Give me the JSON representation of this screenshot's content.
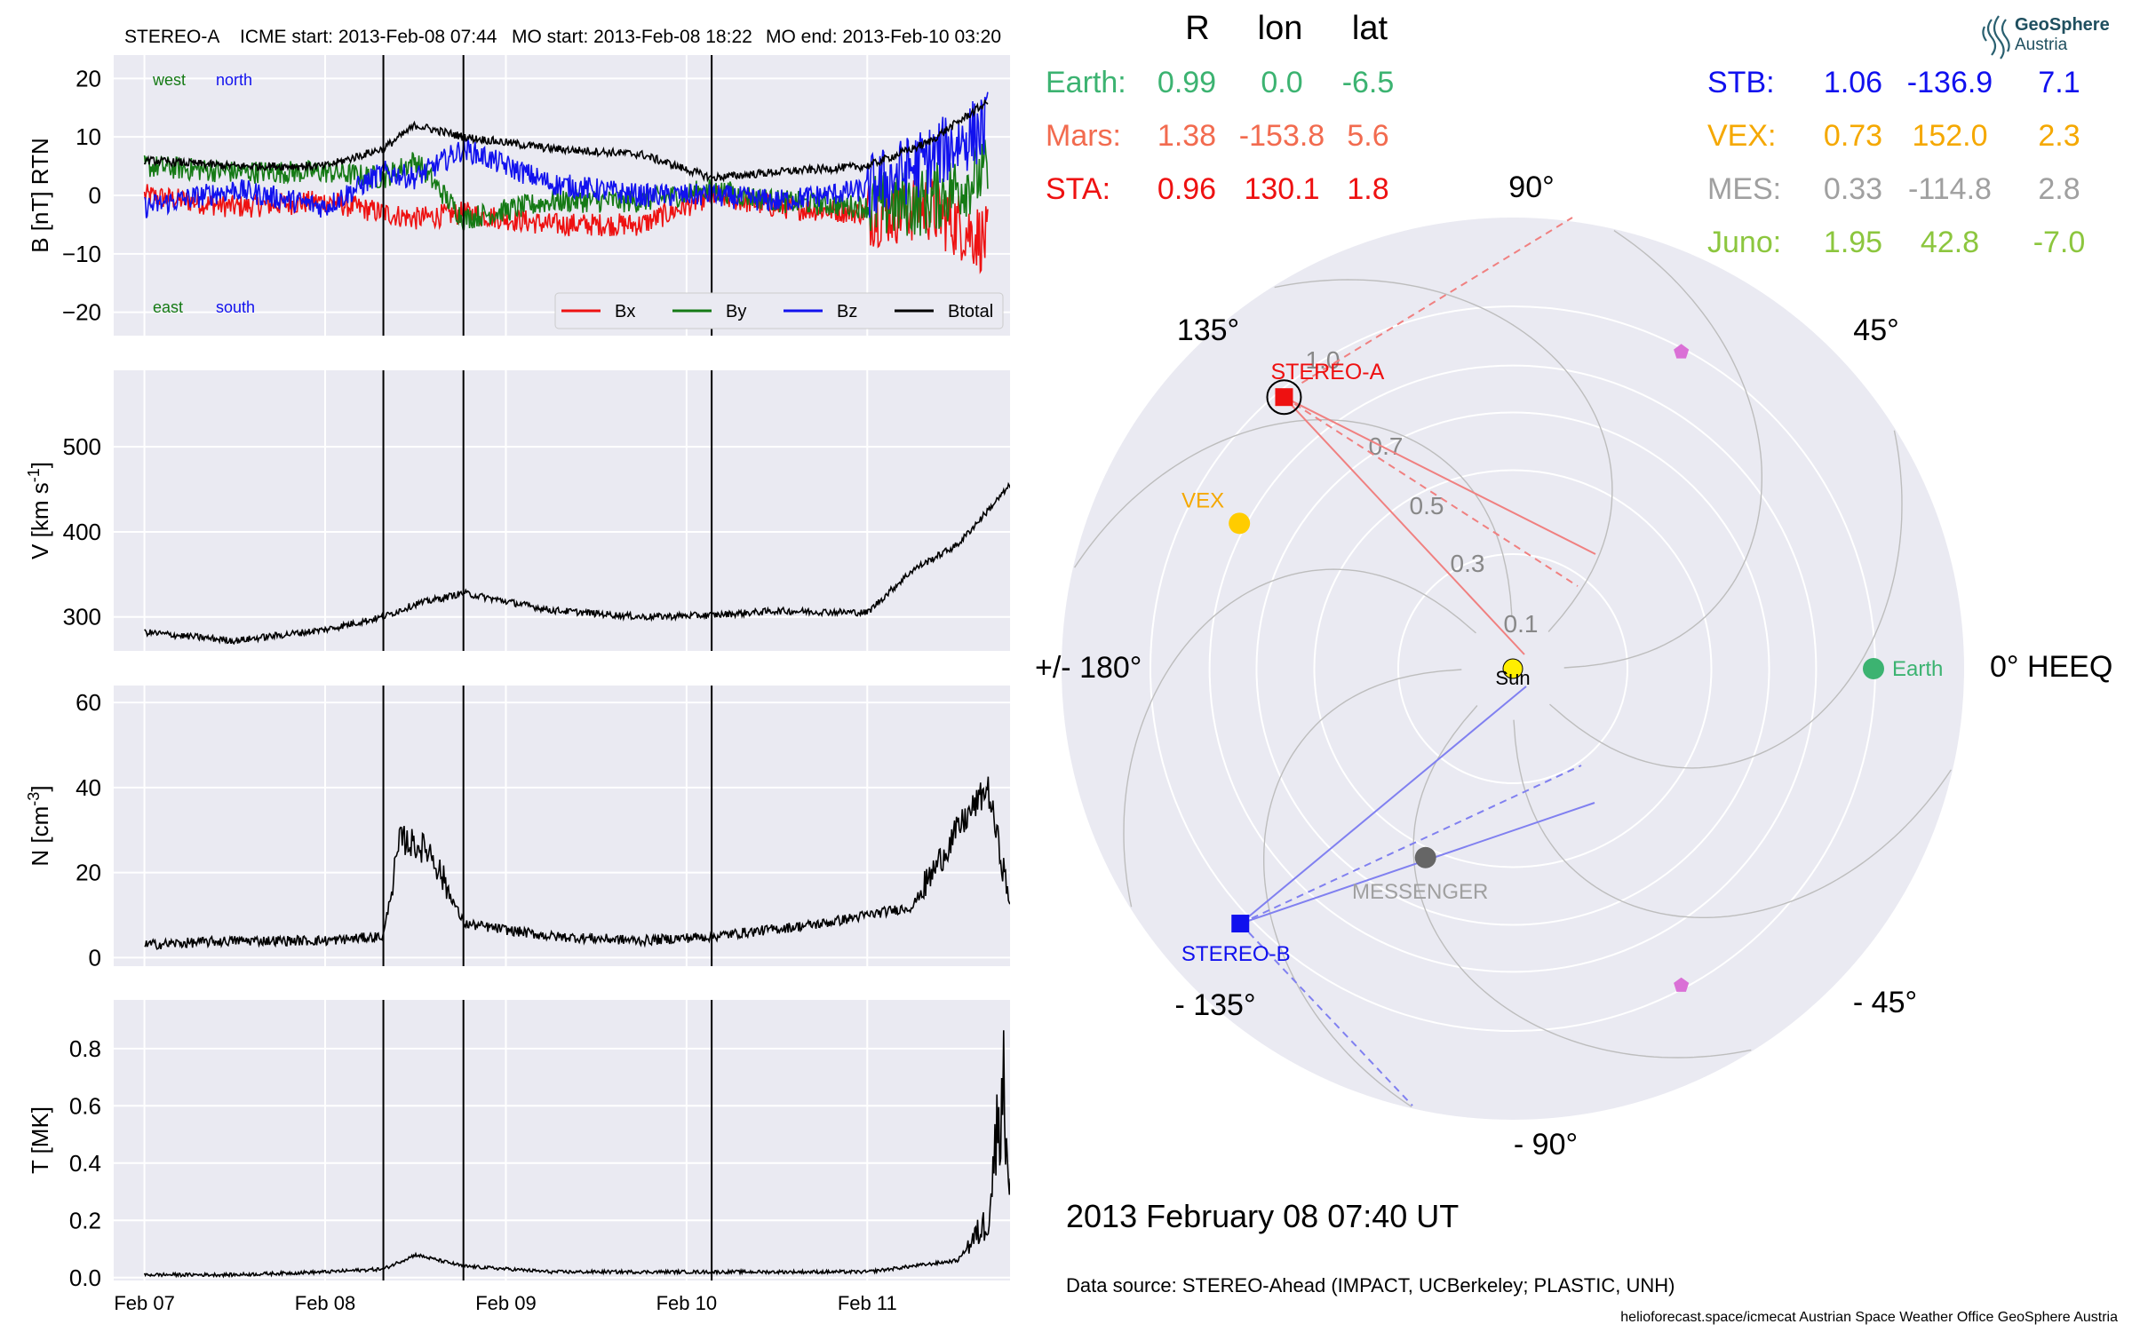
{
  "header": {
    "spacecraft": "STEREO-A",
    "icme_start": "ICME start: 2013-Feb-08 07:44",
    "mo_start": "MO start: 2013-Feb-08 18:22",
    "mo_end": "MO end: 2013-Feb-10 03:20"
  },
  "colors": {
    "bx": "#ee1111",
    "by": "#157a15",
    "bz": "#1111ee",
    "btotal": "#000000",
    "earth": "#3cb371",
    "mars": "#f26b4f",
    "sta": "#ee1111",
    "stb": "#1111ee",
    "vex": "#f5a800",
    "mes": "#a0a0a0",
    "juno": "#8cc63e",
    "panel_bg": "#eaeaf2"
  },
  "positions_table": {
    "headers": [
      "R",
      "lon",
      "lat"
    ],
    "left": [
      {
        "name": "Earth:",
        "R": "0.99",
        "lon": "0.0",
        "lat": "-6.5",
        "color": "#3cb371"
      },
      {
        "name": "Mars:",
        "R": "1.38",
        "lon": "-153.8",
        "lat": "5.6",
        "color": "#f26b4f"
      },
      {
        "name": "STA:",
        "R": "0.96",
        "lon": "130.1",
        "lat": "1.8",
        "color": "#ee1111"
      }
    ],
    "right": [
      {
        "name": "STB:",
        "R": "1.06",
        "lon": "-136.9",
        "lat": "7.1",
        "color": "#1111ee"
      },
      {
        "name": "VEX:",
        "R": "0.73",
        "lon": "152.0",
        "lat": "2.3",
        "color": "#f5a800"
      },
      {
        "name": "MES:",
        "R": "0.33",
        "lon": "-114.8",
        "lat": "2.8",
        "color": "#a0a0a0"
      },
      {
        "name": "Juno:",
        "R": "1.95",
        "lon": "42.8",
        "lat": "-7.0",
        "color": "#8cc63e"
      }
    ]
  },
  "logo": {
    "line1": "GeoSphere",
    "line2": "Austria"
  },
  "footer": {
    "timestamp": "2013 February 08  07:40 UT",
    "data_source": "Data source: STEREO-Ahead (IMPACT, UCBerkeley; PLASTIC, UNH)",
    "credits": "helioforecast.space/icmecat   Austrian Space Weather Office   GeoSphere Austria"
  },
  "chart_data": [
    {
      "type": "line",
      "panel": "magnetic field",
      "ylabel": "B [nT] RTN",
      "ylim": [
        -24,
        24
      ],
      "yticks": [
        "20",
        "10",
        "0",
        "−10",
        "−20"
      ],
      "corner_labels": {
        "top_left": "west",
        "top_right": "north",
        "bottom_left": "east",
        "bottom_right": "south"
      },
      "legend": "lower-right",
      "x": [
        "Feb 07 00:00",
        "Feb 07 12:00",
        "Feb 08 00:00",
        "Feb 08 07:44",
        "Feb 08 12:00",
        "Feb 08 18:22",
        "Feb 09 06:00",
        "Feb 09 18:00",
        "Feb 10 03:20",
        "Feb 10 12:00",
        "Feb 11 00:00",
        "Feb 11 08:00",
        "Feb 11 16:00"
      ],
      "series": [
        {
          "name": "Bx",
          "values": [
            0,
            -2,
            -1,
            -3,
            -4,
            -3,
            -5,
            -5,
            0,
            -2,
            -3,
            -2,
            -8
          ]
        },
        {
          "name": "By",
          "values": [
            5,
            4,
            4,
            3,
            6,
            -4,
            -1,
            -1,
            1,
            -1,
            -2,
            -1,
            4
          ]
        },
        {
          "name": "Bz",
          "values": [
            -2,
            1,
            -2,
            4,
            3,
            8,
            2,
            0,
            0,
            -1,
            1,
            6,
            12
          ]
        },
        {
          "name": "Btotal",
          "values": [
            6,
            5,
            5,
            8,
            12,
            10,
            8,
            7,
            3,
            4,
            5,
            9,
            16
          ]
        }
      ]
    },
    {
      "type": "line",
      "panel": "speed",
      "ylabel": "V [km s$^{-1}$]",
      "ylim": [
        260,
        590
      ],
      "yticks": [
        "500",
        "400",
        "300"
      ],
      "x": [
        "Feb 07 00:00",
        "Feb 07 12:00",
        "Feb 08 00:00",
        "Feb 08 07:44",
        "Feb 08 12:00",
        "Feb 08 18:22",
        "Feb 09 06:00",
        "Feb 09 18:00",
        "Feb 10 03:20",
        "Feb 10 12:00",
        "Feb 11 00:00",
        "Feb 11 06:00",
        "Feb 11 12:00",
        "Feb 11 19:00"
      ],
      "series": [
        {
          "name": "V",
          "values": [
            282,
            272,
            285,
            300,
            315,
            328,
            308,
            300,
            302,
            307,
            305,
            355,
            385,
            455
          ]
        }
      ]
    },
    {
      "type": "line",
      "panel": "density",
      "ylabel": "N [cm$^{-3}$]",
      "ylim": [
        -2,
        64
      ],
      "yticks": [
        "60",
        "40",
        "20",
        "0"
      ],
      "x": [
        "Feb 07 00:00",
        "Feb 07 12:00",
        "Feb 08 00:00",
        "Feb 08 07:44",
        "Feb 08 10:00",
        "Feb 08 14:00",
        "Feb 08 18:22",
        "Feb 09 06:00",
        "Feb 09 18:00",
        "Feb 10 03:20",
        "Feb 10 18:00",
        "Feb 11 06:00",
        "Feb 11 12:00",
        "Feb 11 16:00",
        "Feb 11 19:00"
      ],
      "series": [
        {
          "name": "N",
          "values": [
            3,
            4,
            4,
            5,
            28,
            25,
            8,
            5,
            4,
            5,
            8,
            12,
            30,
            40,
            12
          ]
        }
      ]
    },
    {
      "type": "line",
      "panel": "temperature",
      "ylabel": "T [MK]",
      "ylim": [
        -0.01,
        0.97
      ],
      "yticks": [
        "0.8",
        "0.6",
        "0.4",
        "0.2",
        "0.0"
      ],
      "x": [
        "Feb 07 00:00",
        "Feb 07 12:00",
        "Feb 08 00:00",
        "Feb 08 07:44",
        "Feb 08 12:00",
        "Feb 08 18:22",
        "Feb 09 06:00",
        "Feb 10 03:20",
        "Feb 11 00:00",
        "Feb 11 12:00",
        "Feb 11 16:00",
        "Feb 11 18:00",
        "Feb 11 19:00"
      ],
      "series": [
        {
          "name": "T",
          "values": [
            0.01,
            0.01,
            0.02,
            0.03,
            0.08,
            0.04,
            0.02,
            0.02,
            0.02,
            0.06,
            0.2,
            0.7,
            0.3
          ]
        }
      ]
    },
    {
      "type": "polar",
      "panel": "heliospheric positions",
      "angle_labels": [
        "90°",
        "45°",
        "0° HEEQ",
        "- 45°",
        "- 90°",
        "- 135°",
        "+/- 180°",
        "135°"
      ],
      "radial_labels": [
        "0.1",
        "0.3",
        "0.5",
        "0.7",
        "1.0"
      ],
      "bodies": [
        {
          "name": "Sun",
          "r": 0.0,
          "lon": 0.0
        },
        {
          "name": "Earth",
          "r": 0.99,
          "lon": 0.0
        },
        {
          "name": "STEREO-A",
          "r": 0.96,
          "lon": 130.1
        },
        {
          "name": "STEREO-B",
          "r": 1.06,
          "lon": -136.9
        },
        {
          "name": "VEX",
          "r": 0.73,
          "lon": 152.0
        },
        {
          "name": "MESSENGER",
          "r": 0.33,
          "lon": -114.8
        }
      ],
      "unlabeled_markers": [
        {
          "r": 0.98,
          "lon": 62.0
        },
        {
          "r": 0.98,
          "lon": -62.0
        }
      ]
    }
  ]
}
